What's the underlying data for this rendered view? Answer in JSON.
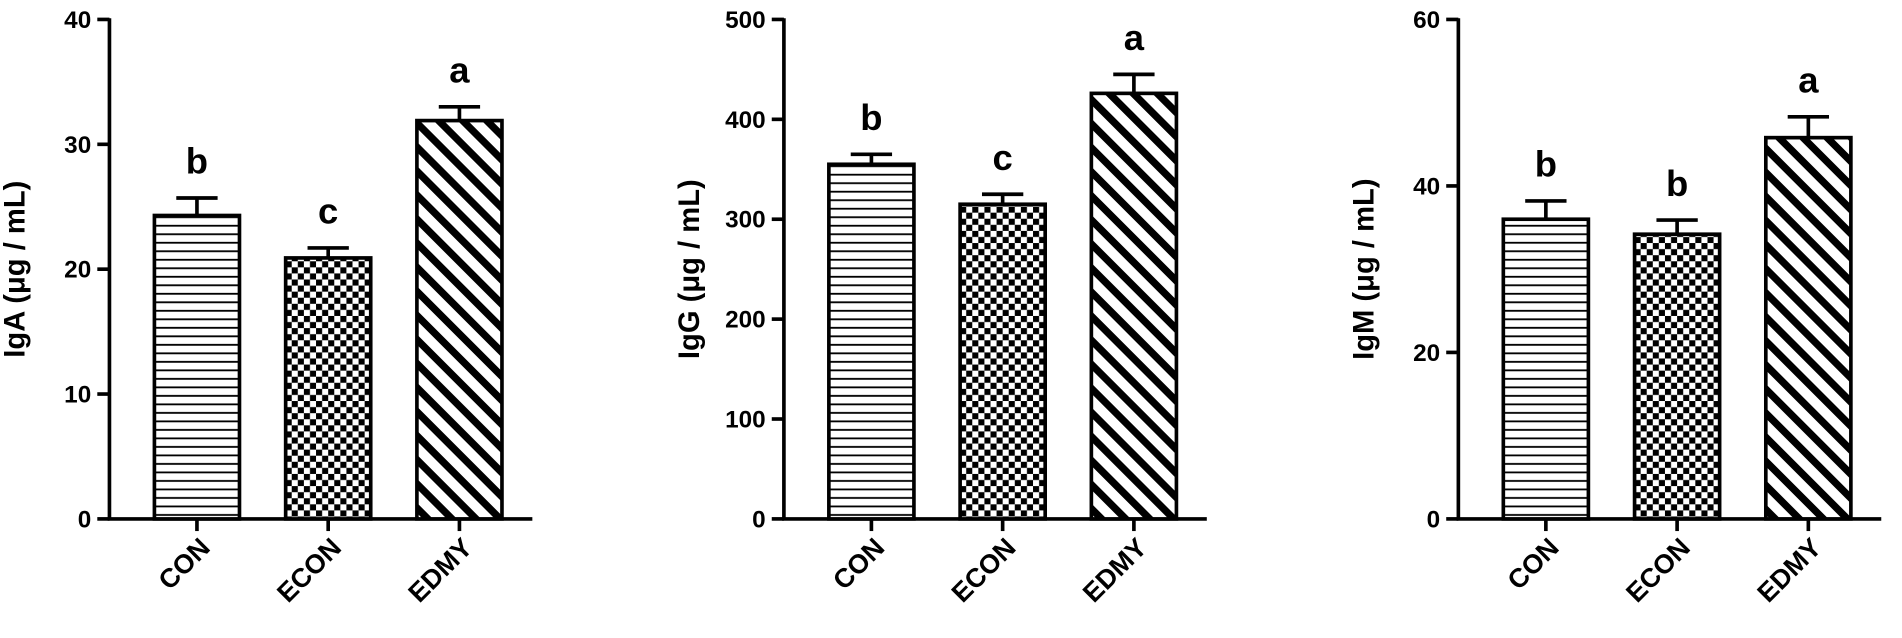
{
  "chart_data": [
    {
      "type": "bar",
      "y_label": "IgA (μg / mL)",
      "categories": [
        "CON",
        "ECON",
        "EDMY"
      ],
      "values": [
        24.3,
        20.9,
        31.9
      ],
      "errors": [
        1.4,
        0.8,
        1.1
      ],
      "annotations": [
        "b",
        "c",
        "a"
      ],
      "patterns": [
        "horizontal",
        "checker",
        "diagonal"
      ],
      "color": "#000000",
      "ylim": [
        0,
        40
      ],
      "yticks": [
        0,
        10,
        20,
        30,
        40
      ]
    },
    {
      "type": "bar",
      "y_label": "IgG (μg / mL)",
      "categories": [
        "CON",
        "ECON",
        "EDMY"
      ],
      "values": [
        355,
        315,
        426
      ],
      "errors": [
        10,
        10,
        19
      ],
      "annotations": [
        "b",
        "c",
        "a"
      ],
      "patterns": [
        "horizontal",
        "checker",
        "diagonal"
      ],
      "color": "#000000",
      "ylim": [
        0,
        500
      ],
      "yticks": [
        0,
        100,
        200,
        300,
        400,
        500
      ]
    },
    {
      "type": "bar",
      "y_label": "IgM (μg / mL)",
      "categories": [
        "CON",
        "ECON",
        "EDMY"
      ],
      "values": [
        36,
        34.2,
        45.8
      ],
      "errors": [
        2.2,
        1.7,
        2.5
      ],
      "annotations": [
        "b",
        "b",
        "a"
      ],
      "patterns": [
        "horizontal",
        "checker",
        "diagonal"
      ],
      "color": "#000000",
      "ylim": [
        0,
        60
      ],
      "yticks": [
        0,
        20,
        40,
        60
      ]
    }
  ]
}
